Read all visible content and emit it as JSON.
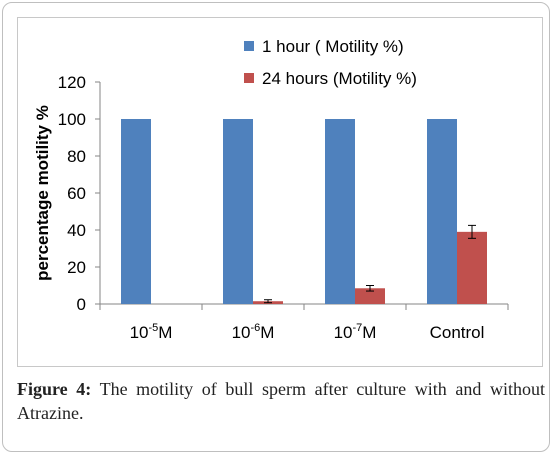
{
  "chart_data": {
    "type": "bar",
    "title": "",
    "xlabel": "",
    "ylabel": "percentage motility %",
    "ylim": [
      0,
      120
    ],
    "yticks": [
      0,
      20,
      40,
      60,
      80,
      100,
      120
    ],
    "grid": false,
    "legend_position": "top-right",
    "categories": [
      {
        "base": "10",
        "exp": "-5",
        "unit": "M"
      },
      {
        "base": "10",
        "exp": "-6",
        "unit": "M"
      },
      {
        "base": "10",
        "exp": "-7",
        "unit": "M"
      },
      {
        "base": "Control",
        "exp": "",
        "unit": ""
      }
    ],
    "series": [
      {
        "name": "1 hour ( Motility %)",
        "color": "#4f81bd",
        "values": [
          100,
          100,
          100,
          100
        ],
        "errors": [
          0,
          0,
          0,
          0
        ]
      },
      {
        "name": "24 hours (Motility %)",
        "color": "#c0504d",
        "values": [
          0,
          1.5,
          8.5,
          39
        ],
        "errors": [
          0,
          0.8,
          1.5,
          3.5
        ]
      }
    ]
  },
  "caption": {
    "label": "Figure 4:",
    "text": " The motility of bull sperm after culture with and without Atrazine."
  }
}
